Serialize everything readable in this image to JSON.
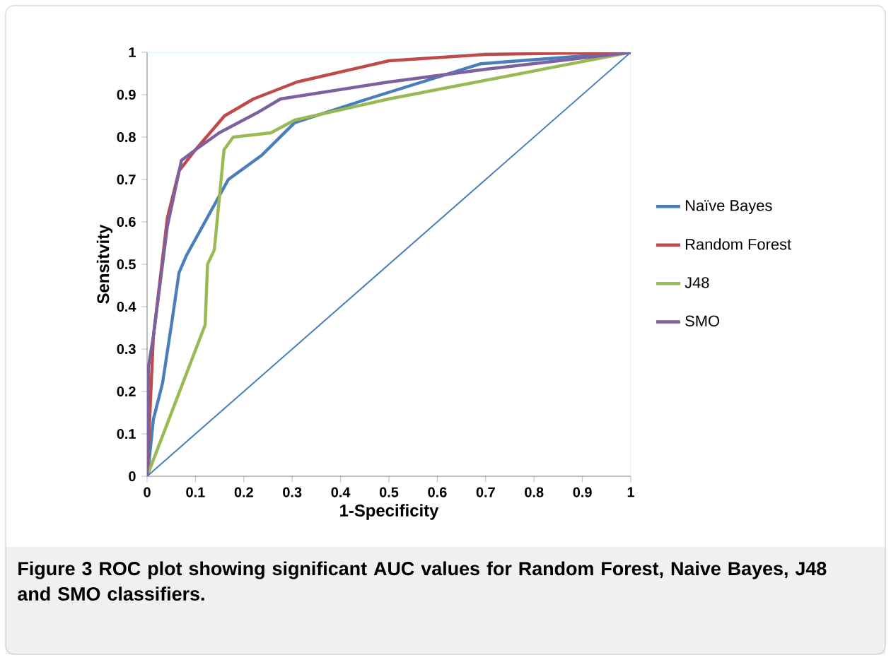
{
  "chart_data": {
    "type": "line",
    "xlabel": "1-Specificity",
    "ylabel": "Sensitvity",
    "xlim": [
      0,
      1
    ],
    "ylim": [
      0,
      1
    ],
    "xticks": [
      0,
      0.1,
      0.2,
      0.3,
      0.4,
      0.5,
      0.6,
      0.7,
      0.8,
      0.9,
      1
    ],
    "yticks": [
      0,
      0.1,
      0.2,
      0.3,
      0.4,
      0.5,
      0.6,
      0.7,
      0.8,
      0.9,
      1
    ],
    "legend": "right",
    "annotations": [
      "Figure 3 ROC plot showing significant AUC values for Random Forest, Naive Bayes, J48 and SMO classifiers."
    ],
    "series": [
      {
        "name": "Naïve Bayes",
        "color": "#4a7ebb",
        "x": [
          0,
          0.003,
          0.013,
          0.032,
          0.052,
          0.066,
          0.081,
          0.168,
          0.237,
          0.305,
          0.456,
          0.69,
          1
        ],
        "values": [
          0,
          0.023,
          0.134,
          0.22,
          0.37,
          0.48,
          0.52,
          0.7,
          0.757,
          0.834,
          0.89,
          0.973,
          1
        ]
      },
      {
        "name": "Random Forest",
        "color": "#be4b48",
        "x": [
          0,
          0.013,
          0.042,
          0.066,
          0.1,
          0.16,
          0.22,
          0.31,
          0.5,
          0.7,
          1
        ],
        "values": [
          0,
          0.33,
          0.61,
          0.72,
          0.77,
          0.85,
          0.89,
          0.93,
          0.98,
          0.995,
          1
        ]
      },
      {
        "name": "J48",
        "color": "#98b954",
        "x": [
          0,
          0.12,
          0.125,
          0.139,
          0.159,
          0.178,
          0.256,
          0.305,
          0.5,
          1
        ],
        "values": [
          0,
          0.357,
          0.5,
          0.534,
          0.77,
          0.8,
          0.81,
          0.84,
          0.89,
          1
        ]
      },
      {
        "name": "SMO",
        "color": "#7d60a0",
        "x": [
          0,
          0.003,
          0.013,
          0.042,
          0.071,
          0.1,
          0.149,
          0.227,
          0.276,
          0.5,
          0.7,
          1
        ],
        "values": [
          0,
          0.26,
          0.33,
          0.59,
          0.745,
          0.77,
          0.81,
          0.857,
          0.89,
          0.93,
          0.96,
          1
        ]
      },
      {
        "color": "#4a7ebb",
        "x": [
          0,
          1
        ],
        "values": [
          0,
          1
        ]
      }
    ]
  }
}
